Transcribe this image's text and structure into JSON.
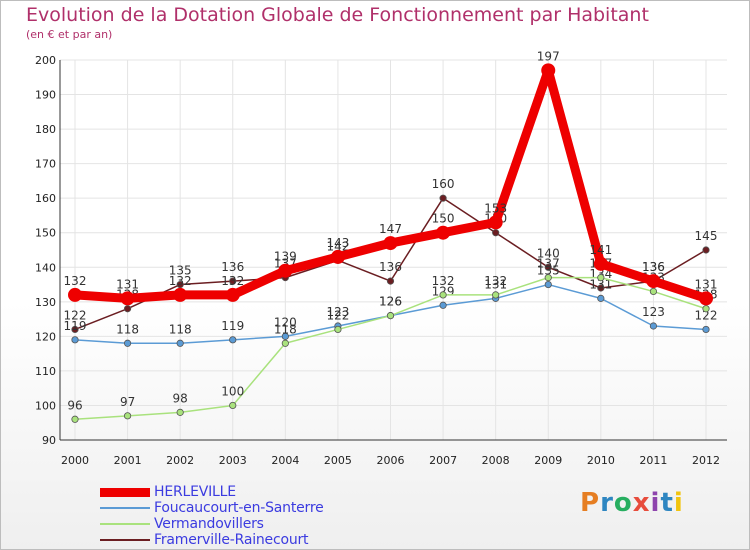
{
  "chart_data": {
    "type": "line",
    "title": "Evolution de la Dotation Globale de Fonctionnement par Habitant",
    "subtitle": "(en € et par an)",
    "xlabel": "",
    "ylabel": "",
    "x": [
      "2000",
      "2001",
      "2002",
      "2003",
      "2004",
      "2005",
      "2006",
      "2007",
      "2008",
      "2009",
      "2010",
      "2011",
      "2012"
    ],
    "ylim": [
      90,
      200
    ],
    "yticks": [
      90,
      100,
      110,
      120,
      130,
      140,
      150,
      160,
      170,
      180,
      190,
      200
    ],
    "grid": true,
    "legend_position": "bottom-left",
    "series": [
      {
        "name": "Framerville-Rainecourt",
        "color": "#6b1e22",
        "values": [
          122,
          128,
          135,
          136,
          137,
          142,
          136,
          160,
          150,
          140,
          134,
          136,
          145
        ]
      },
      {
        "name": "Foucaucourt-en-Santerre",
        "color": "#5b9bd5",
        "values": [
          119,
          118,
          118,
          119,
          120,
          123,
          126,
          129,
          131,
          135,
          131,
          123,
          122
        ]
      },
      {
        "name": "Vermandovillers",
        "color": "#a9e27d",
        "values": [
          96,
          97,
          98,
          100,
          118,
          122,
          126,
          132,
          132,
          137,
          137,
          133,
          128
        ]
      },
      {
        "name": "HERLEVILLE",
        "color": "#ee0000",
        "values": [
          132,
          131,
          132,
          132,
          139,
          143,
          147,
          150,
          153,
          197,
          141,
          136,
          131
        ]
      }
    ]
  },
  "legend": {
    "items": [
      {
        "label": "HERLEVILLE",
        "color": "#ee0000"
      },
      {
        "label": "Foucaucourt-en-Santerre",
        "color": "#5b9bd5"
      },
      {
        "label": "Vermandovillers",
        "color": "#a9e27d"
      },
      {
        "label": "Framerville-Rainecourt",
        "color": "#6b1e22"
      }
    ]
  },
  "logo": {
    "letters": [
      "P",
      "r",
      "o",
      "x",
      "i",
      "t",
      "i"
    ]
  }
}
